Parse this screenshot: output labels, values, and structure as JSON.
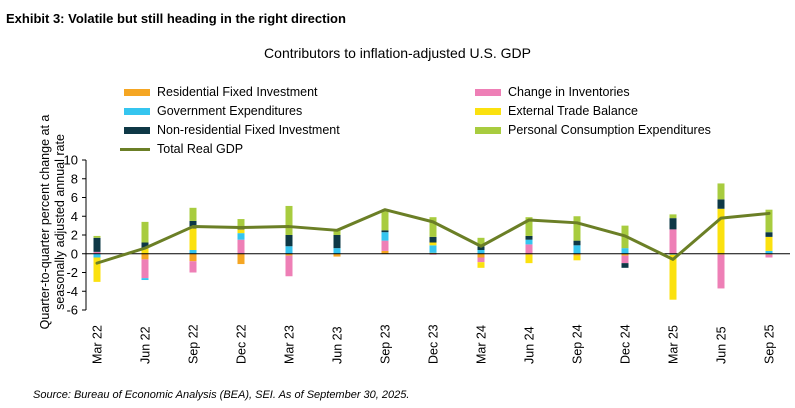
{
  "exhibit_title": "Exhibit 3: Volatile but still heading in the right direction",
  "source": "Source: Bureau of Economic Analysis (BEA), SEI. As of September 30, 2025.",
  "colors": {
    "residential": "#f5a623",
    "inventories": "#ee7fb6",
    "government": "#35c5ef",
    "trade": "#fbe10f",
    "nonresidential": "#0e3846",
    "consumption": "#a8cc3f",
    "total": "#6b7f26",
    "axis": "#000000"
  },
  "chart_data": {
    "type": "bar",
    "title": "Contributors to inflation-adjusted U.S. GDP",
    "ylabel_lines": [
      "Quarter-to-quarter percent change at a",
      "seasonally adjusted annual rate"
    ],
    "xlabel": "",
    "ylim": [
      -6,
      10
    ],
    "yticks": [
      -6,
      -4,
      -2,
      0,
      2,
      4,
      6,
      8,
      10
    ],
    "grid": false,
    "stacked": true,
    "legend_position": "top",
    "categories": [
      "Mar 22",
      "Jun 22",
      "Sep 22",
      "Dec 22",
      "Mar 23",
      "Jun 23",
      "Sep 23",
      "Dec 23",
      "Mar 24",
      "Jun 24",
      "Sep 24",
      "Dec 24",
      "Mar 25",
      "Jun 25",
      "Sep 25"
    ],
    "series": [
      {
        "key": "residential",
        "name": "Residential Fixed Investment",
        "legend_col": 0,
        "values": [
          0.0,
          -0.6,
          -0.8,
          -1.1,
          -0.2,
          -0.3,
          0.3,
          0.1,
          -0.4,
          -0.1,
          -0.2,
          -0.2,
          0.0,
          -0.1,
          -0.1
        ]
      },
      {
        "key": "inventories",
        "name": "Change in Inventories",
        "legend_col": 1,
        "values": [
          0.2,
          -2.0,
          -1.2,
          1.5,
          -2.2,
          0.0,
          1.1,
          -0.1,
          -0.5,
          1.0,
          0.0,
          -0.8,
          2.6,
          -3.6,
          -0.3
        ]
      },
      {
        "key": "government",
        "name": "Government Expenditures",
        "legend_col": 0,
        "values": [
          -0.4,
          -0.2,
          0.4,
          0.7,
          0.8,
          0.6,
          0.9,
          0.8,
          0.4,
          0.5,
          0.9,
          0.6,
          -0.1,
          0.0,
          0.3
        ]
      },
      {
        "key": "trade",
        "name": "External Trade Balance",
        "legend_col": 1,
        "values": [
          -2.6,
          0.6,
          2.3,
          0.4,
          0.0,
          0.0,
          0.0,
          0.3,
          -0.6,
          -0.9,
          -0.5,
          0.0,
          -4.8,
          4.8,
          1.5
        ]
      },
      {
        "key": "nonresidential",
        "name": "Non-residential Fixed Investment",
        "legend_col": 0,
        "values": [
          1.5,
          0.6,
          0.8,
          0.3,
          1.2,
          1.4,
          0.2,
          0.6,
          0.4,
          0.4,
          0.5,
          -0.5,
          1.2,
          1.0,
          0.5
        ]
      },
      {
        "key": "consumption",
        "name": "Personal Consumption Expenditures",
        "legend_col": 1,
        "values": [
          0.2,
          2.2,
          1.4,
          0.8,
          3.1,
          0.6,
          2.1,
          2.1,
          0.9,
          2.0,
          2.6,
          2.4,
          0.4,
          1.7,
          2.4
        ]
      }
    ],
    "line": {
      "name": "Total Real GDP",
      "values": [
        -1.0,
        0.6,
        2.9,
        2.8,
        2.9,
        2.5,
        4.7,
        3.4,
        0.8,
        3.6,
        3.3,
        1.9,
        -0.6,
        3.8,
        4.3
      ]
    }
  }
}
